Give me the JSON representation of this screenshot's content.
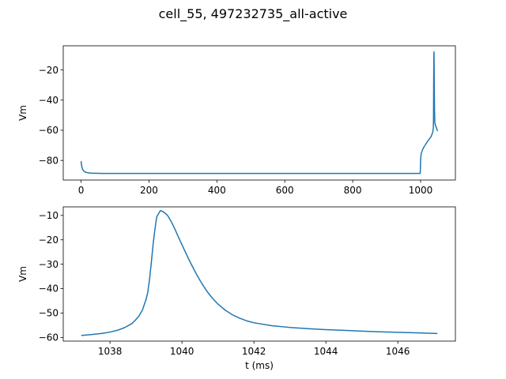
{
  "figure": {
    "title": "cell_55, 497232735_all-active"
  },
  "chart_data": [
    {
      "type": "line",
      "title": "",
      "xlabel": "",
      "ylabel": "Vm",
      "xlim": [
        -52.5,
        1102.5
      ],
      "ylim": [
        -93.0,
        -4.0
      ],
      "xticks": [
        0,
        200,
        400,
        600,
        800,
        1000
      ],
      "yticks": [
        -80,
        -60,
        -40,
        -20
      ],
      "grid": false,
      "series": [
        {
          "color": "#1f77b4",
          "x": [
            0,
            2,
            4,
            6,
            8,
            10,
            15,
            20,
            30,
            40,
            60,
            80,
            100,
            200,
            400,
            600,
            800,
            995,
            999,
            1000,
            1001,
            1002,
            1004,
            1006,
            1010,
            1015,
            1020,
            1025,
            1030,
            1033,
            1035,
            1036,
            1037,
            1037.5,
            1038,
            1038.5,
            1039,
            1039.4,
            1039.8,
            1040.2,
            1041,
            1042,
            1044,
            1046,
            1047,
            1048,
            1050
          ],
          "y": [
            -80.5,
            -84.0,
            -85.6,
            -86.5,
            -87.0,
            -87.4,
            -87.9,
            -88.2,
            -88.4,
            -88.5,
            -88.6,
            -88.6,
            -88.6,
            -88.6,
            -88.6,
            -88.6,
            -88.6,
            -88.6,
            -88.6,
            -80.0,
            -77.0,
            -75.5,
            -74.0,
            -72.8,
            -71.0,
            -69.3,
            -67.5,
            -66.0,
            -64.5,
            -63.0,
            -61.8,
            -60.8,
            -59.5,
            -58.0,
            -54.0,
            -30.0,
            -11.0,
            -8.0,
            -14.0,
            -28.0,
            -47.0,
            -55.0,
            -57.0,
            -58.0,
            -58.5,
            -59.5,
            -60.5
          ]
        }
      ]
    },
    {
      "type": "line",
      "title": "",
      "xlabel": "t (ms)",
      "ylabel": "Vm",
      "xlim": [
        1036.7,
        1047.6
      ],
      "ylim": [
        -61.5,
        -6.5
      ],
      "xticks": [
        1038,
        1040,
        1042,
        1044,
        1046
      ],
      "yticks": [
        -60,
        -50,
        -40,
        -30,
        -20,
        -10
      ],
      "grid": false,
      "series": [
        {
          "color": "#1f77b4",
          "x": [
            1037.2,
            1037.5,
            1037.8,
            1038.0,
            1038.2,
            1038.4,
            1038.6,
            1038.7,
            1038.8,
            1038.9,
            1039.0,
            1039.05,
            1039.1,
            1039.15,
            1039.2,
            1039.25,
            1039.3,
            1039.35,
            1039.4,
            1039.45,
            1039.5,
            1039.6,
            1039.7,
            1039.8,
            1039.9,
            1040.0,
            1040.1,
            1040.2,
            1040.3,
            1040.4,
            1040.5,
            1040.6,
            1040.7,
            1040.8,
            1040.9,
            1041.0,
            1041.2,
            1041.4,
            1041.6,
            1041.8,
            1042.0,
            1042.5,
            1043.0,
            1043.5,
            1044.0,
            1044.5,
            1045.0,
            1045.5,
            1046.0,
            1046.5,
            1047.1
          ],
          "y": [
            -59.2,
            -58.8,
            -58.3,
            -57.8,
            -57.1,
            -56.0,
            -54.4,
            -53.0,
            -51.3,
            -48.8,
            -44.5,
            -41.5,
            -36.0,
            -29.0,
            -21.5,
            -15.5,
            -10.5,
            -9.3,
            -8.0,
            -8.3,
            -8.7,
            -10.0,
            -12.5,
            -15.5,
            -18.8,
            -22.0,
            -25.2,
            -28.3,
            -31.2,
            -34.0,
            -36.6,
            -39.0,
            -41.2,
            -43.1,
            -44.8,
            -46.3,
            -48.8,
            -50.7,
            -52.1,
            -53.2,
            -54.0,
            -55.2,
            -55.9,
            -56.4,
            -56.8,
            -57.1,
            -57.4,
            -57.7,
            -57.9,
            -58.1,
            -58.4
          ]
        }
      ]
    }
  ]
}
